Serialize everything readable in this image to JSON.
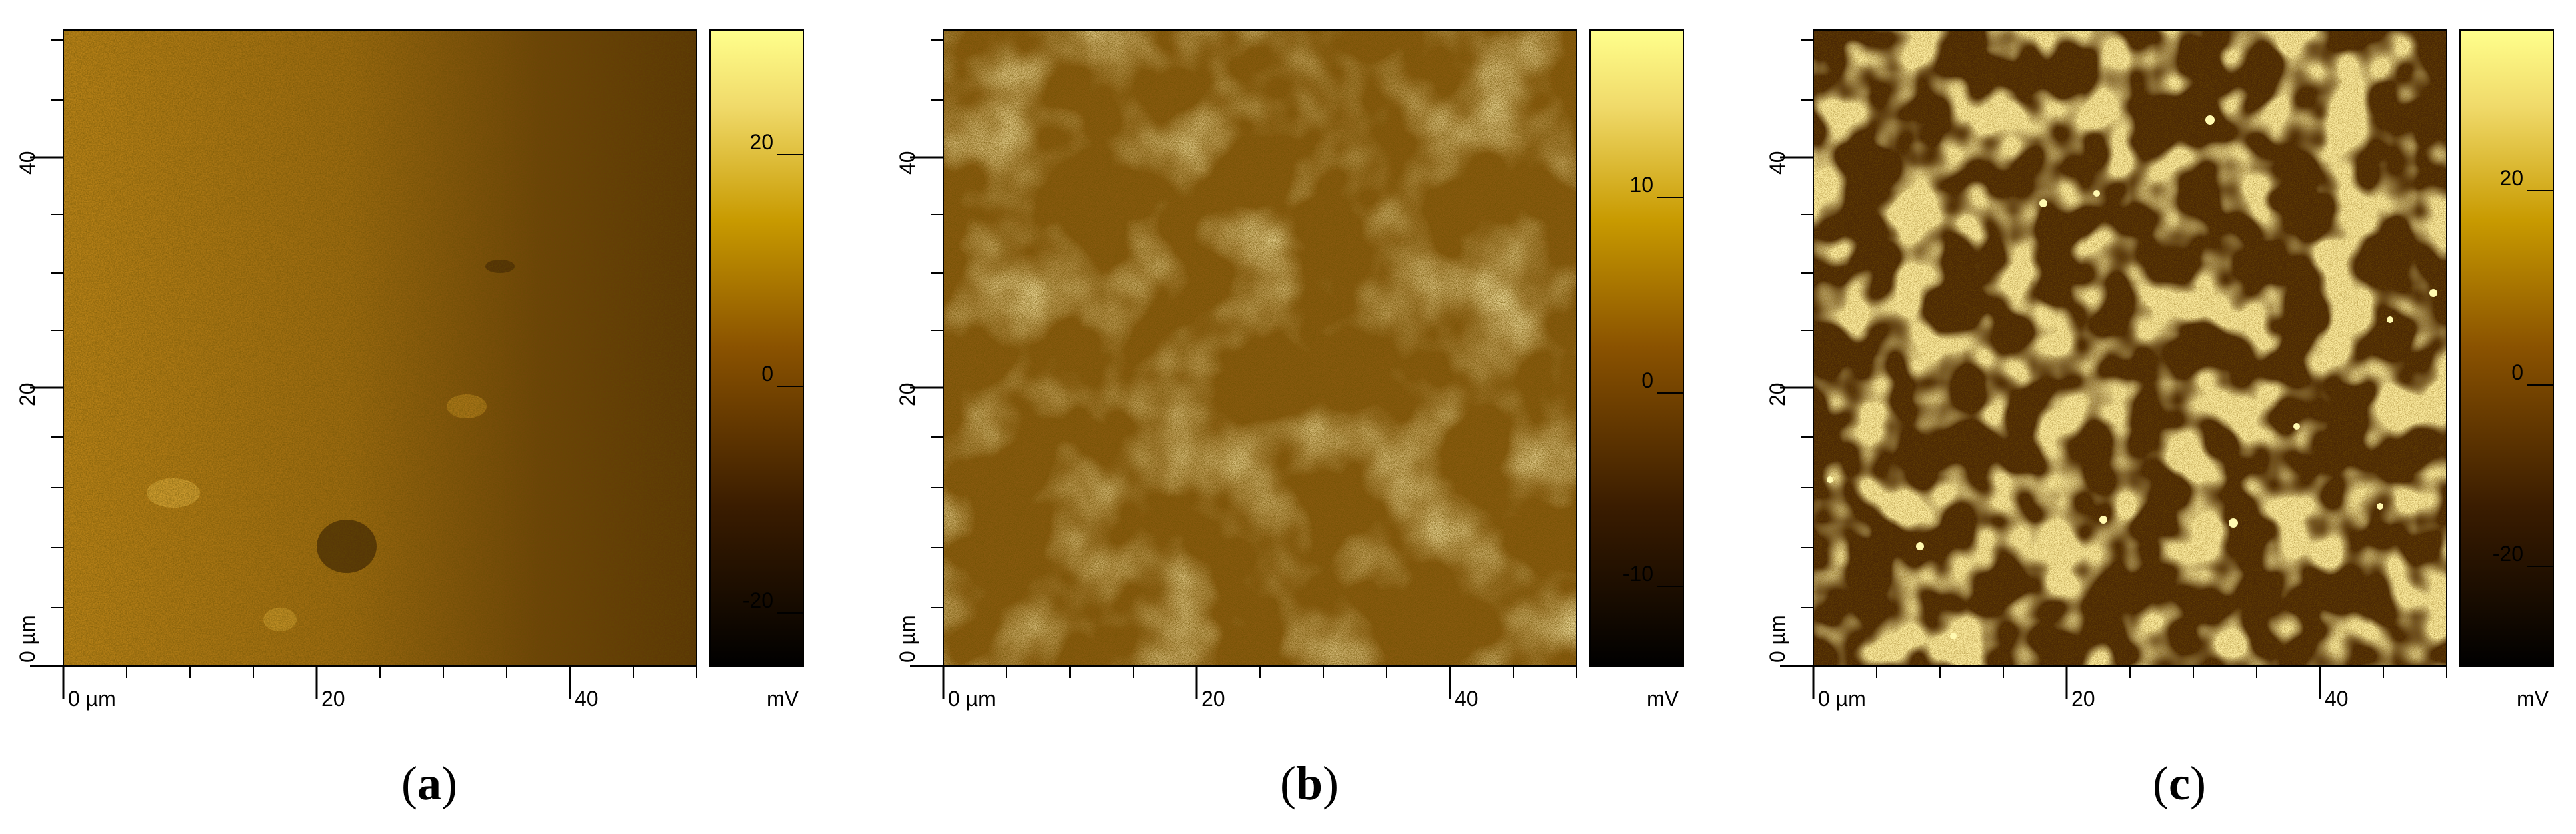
{
  "panels": [
    {
      "caption_letter": "a",
      "x_ticks": [
        {
          "value": 0,
          "label": "0 µm"
        },
        {
          "value": 20,
          "label": "20"
        },
        {
          "value": 40,
          "label": "40"
        }
      ],
      "y_ticks": [
        {
          "value": 0,
          "label": "0 µm"
        },
        {
          "value": 20,
          "label": "20"
        },
        {
          "value": 40,
          "label": "40"
        }
      ],
      "scan_range_um": [
        0,
        50
      ],
      "colorbar_ticks": [
        {
          "value": 20,
          "label": "20"
        },
        {
          "value": 0,
          "label": "0"
        },
        {
          "value": -20,
          "label": "-20"
        }
      ],
      "colorbar_range_mv": [
        -25,
        30
      ],
      "colorbar_unit": "mV",
      "map_style": "smooth-uniform"
    },
    {
      "caption_letter": "b",
      "x_ticks": [
        {
          "value": 0,
          "label": "0 µm"
        },
        {
          "value": 20,
          "label": "20"
        },
        {
          "value": 40,
          "label": "40"
        }
      ],
      "y_ticks": [
        {
          "value": 0,
          "label": "0 µm"
        },
        {
          "value": 20,
          "label": "20"
        },
        {
          "value": 40,
          "label": "40"
        }
      ],
      "scan_range_um": [
        0,
        50
      ],
      "colorbar_ticks": [
        {
          "value": 10,
          "label": "10"
        },
        {
          "value": 0,
          "label": "0"
        },
        {
          "value": -10,
          "label": "-10"
        }
      ],
      "colorbar_range_mv": [
        -15,
        20
      ],
      "colorbar_unit": "mV",
      "map_style": "fine-grain"
    },
    {
      "caption_letter": "c",
      "x_ticks": [
        {
          "value": 0,
          "label": "0 µm"
        },
        {
          "value": 20,
          "label": "20"
        },
        {
          "value": 40,
          "label": "40"
        }
      ],
      "y_ticks": [
        {
          "value": 0,
          "label": "0 µm"
        },
        {
          "value": 20,
          "label": "20"
        },
        {
          "value": 40,
          "label": "40"
        }
      ],
      "scan_range_um": [
        0,
        50
      ],
      "colorbar_ticks": [
        {
          "value": 20,
          "label": "20"
        },
        {
          "value": 0,
          "label": "0"
        },
        {
          "value": -20,
          "label": "-20"
        }
      ],
      "colorbar_range_mv": [
        -30,
        40
      ],
      "colorbar_unit": "mV",
      "map_style": "domains"
    }
  ],
  "colors": {
    "gradient": [
      "#000000",
      "#3a1c00",
      "#8a5200",
      "#c89a00",
      "#f0da6a",
      "#ffff8c"
    ]
  }
}
